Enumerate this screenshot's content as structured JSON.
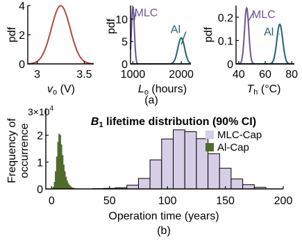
{
  "colors": {
    "vo_curve": "#b5453d",
    "mlc": "#6b5596",
    "mlc_fill": "#d6cde6",
    "al": "#1e6270",
    "al_hist": "#4f6b2a",
    "hist_edge": "#000000"
  },
  "panel_labels": {
    "a": "(a)",
    "b": "(b)"
  },
  "chart_data": [
    {
      "type": "line",
      "ylabel": "pdf",
      "xlabel_main": "v",
      "xlabel_sub": "o",
      "xlabel_unit": " (V)",
      "xlim": [
        2.9,
        3.6
      ],
      "ylim": [
        0,
        4
      ],
      "xticks": [
        3,
        3.5
      ],
      "xtick_labels": [
        "3",
        "3.5"
      ],
      "yticks": [
        0,
        2,
        4
      ],
      "ytick_labels": [
        "0",
        "2",
        "4"
      ],
      "series": [
        {
          "kind": "gaussian",
          "mean": 3.25,
          "std": 0.1,
          "color_key": "vo_curve"
        }
      ]
    },
    {
      "type": "line",
      "ylabel": "pdf",
      "xlabel_main": "L",
      "xlabel_sub": "o",
      "xlabel_unit": " (hours)",
      "xlim": [
        950,
        2200
      ],
      "ylim": [
        0,
        0.013
      ],
      "yscale_label": "",
      "xticks": [
        1000,
        2000
      ],
      "xtick_labels": [
        "1000",
        "2000"
      ],
      "yticks": [
        0,
        0.005,
        0.01
      ],
      "ytick_labels": [
        "0",
        "5",
        "10"
      ],
      "series": [
        {
          "name": "MLC",
          "kind": "gaussian",
          "mean": 1000,
          "std": 30,
          "peak": 0.0128,
          "color_key": "mlc",
          "label_at": [
            1030,
            0.0115
          ]
        },
        {
          "name": "Al",
          "kind": "gaussian",
          "mean": 2000,
          "std": 70,
          "peak": 0.0058,
          "color_key": "al",
          "label_at": [
            1780,
            0.0078
          ]
        }
      ]
    },
    {
      "type": "line",
      "ylabel": "pdf",
      "xlabel_main": "T",
      "xlabel_sub": "h",
      "xlabel_unit": " (°C)",
      "xlim": [
        38,
        82
      ],
      "ylim": [
        0,
        0.25
      ],
      "xticks": [
        40,
        60,
        80
      ],
      "xtick_labels": [
        "40",
        "60",
        "80"
      ],
      "yticks": [
        0,
        0.1,
        0.2
      ],
      "ytick_labels": [
        "0",
        "0.1",
        "0.2"
      ],
      "series": [
        {
          "name": "MLC",
          "kind": "gaussian",
          "mean": 46,
          "std": 1.6,
          "peak": 0.24,
          "color_key": "mlc",
          "label_at": [
            50,
            0.215
          ]
        },
        {
          "name": "Al",
          "kind": "gaussian",
          "mean": 71,
          "std": 2.2,
          "peak": 0.17,
          "color_key": "al",
          "label_at": [
            59,
            0.14
          ]
        }
      ]
    },
    {
      "type": "bar",
      "title_main": "B",
      "title_sub": "1",
      "title_rest": " lifetime distribution (90% CI)",
      "ylabel_line1": "Frequency of",
      "ylabel_line2": "occurrence",
      "xlabel": "Operation time (years)",
      "y_exponent_base": "3×10",
      "y_exponent_power": "4",
      "xlim": [
        -5,
        200
      ],
      "ylim": [
        0,
        30000
      ],
      "xticks": [
        0,
        50,
        100,
        150,
        200
      ],
      "xtick_labels": [
        "0",
        "50",
        "100",
        "150",
        "200"
      ],
      "yticks": [
        0,
        10000,
        20000
      ],
      "ytick_labels": [
        "0",
        "1",
        "2"
      ],
      "legend_position": "top-right",
      "series": [
        {
          "name": "MLC-Cap",
          "color_key": "mlc_fill",
          "bin_width": 10,
          "bin_starts": [
            35,
            45,
            55,
            65,
            75,
            85,
            95,
            105,
            115,
            125,
            135,
            145,
            155,
            165,
            175
          ],
          "counts": [
            100,
            200,
            400,
            1400,
            3900,
            10800,
            18600,
            22000,
            21300,
            18700,
            13100,
            7700,
            3700,
            1600,
            600
          ]
        },
        {
          "name": "Al-Cap",
          "color_key": "al_hist",
          "bin_width": 1,
          "bin_starts": [
            1,
            2,
            3,
            4,
            5,
            6,
            7,
            8,
            9,
            10,
            11,
            12,
            13,
            14,
            15,
            16,
            17,
            18,
            19,
            20,
            21,
            22
          ],
          "counts": [
            700,
            2500,
            6500,
            12000,
            17500,
            20500,
            20000,
            16500,
            12500,
            9000,
            6500,
            4500,
            3000,
            2000,
            1400,
            900,
            600,
            400,
            250,
            150,
            80,
            40
          ]
        }
      ]
    }
  ]
}
